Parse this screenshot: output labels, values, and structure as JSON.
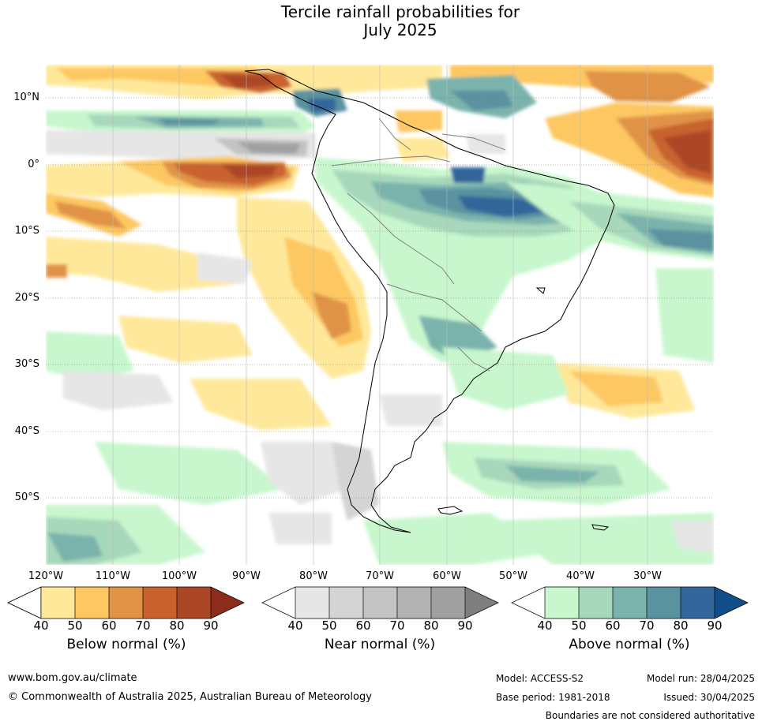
{
  "title_line1": "Tercile rainfall probabilities for",
  "title_line2": "July 2025",
  "lat_labels": [
    "10°N",
    "0°",
    "10°S",
    "20°S",
    "30°S",
    "40°S",
    "50°S"
  ],
  "lon_labels": [
    "120°W",
    "110°W",
    "100°W",
    "90°W",
    "80°W",
    "70°W",
    "60°W",
    "50°W",
    "40°W",
    "30°W"
  ],
  "colorbars": [
    {
      "label": "Below normal (%)",
      "ticks": [
        "40",
        "50",
        "60",
        "70",
        "80",
        "90"
      ],
      "colors": [
        "#ffe89a",
        "#fdc862",
        "#e09346",
        "#c8622f",
        "#ab4626",
        "#8b2d1a"
      ]
    },
    {
      "label": "Near normal (%)",
      "ticks": [
        "40",
        "50",
        "60",
        "70",
        "80",
        "90"
      ],
      "colors": [
        "#e6e6e6",
        "#d4d4d4",
        "#c3c3c3",
        "#b2b2b2",
        "#a0a0a0",
        "#7f7f7f"
      ]
    },
    {
      "label": "Above normal (%)",
      "ticks": [
        "40",
        "50",
        "60",
        "70",
        "80",
        "90"
      ],
      "colors": [
        "#c8f7cd",
        "#a7d8bb",
        "#7ab3ac",
        "#5a92a0",
        "#32669b",
        "#124f8a"
      ]
    }
  ],
  "footer": {
    "website": "www.bom.gov.au/climate",
    "copyright": "© Commonwealth of Australia 2025, Australian Bureau of Meteorology",
    "model": "Model: ACCESS-S2",
    "base_period": "Base period: 1981-2018",
    "model_run": "Model run: 28/04/2025",
    "issued": "Issued: 30/04/2025",
    "disclaimer": "Boundaries are not considered authoritative"
  }
}
